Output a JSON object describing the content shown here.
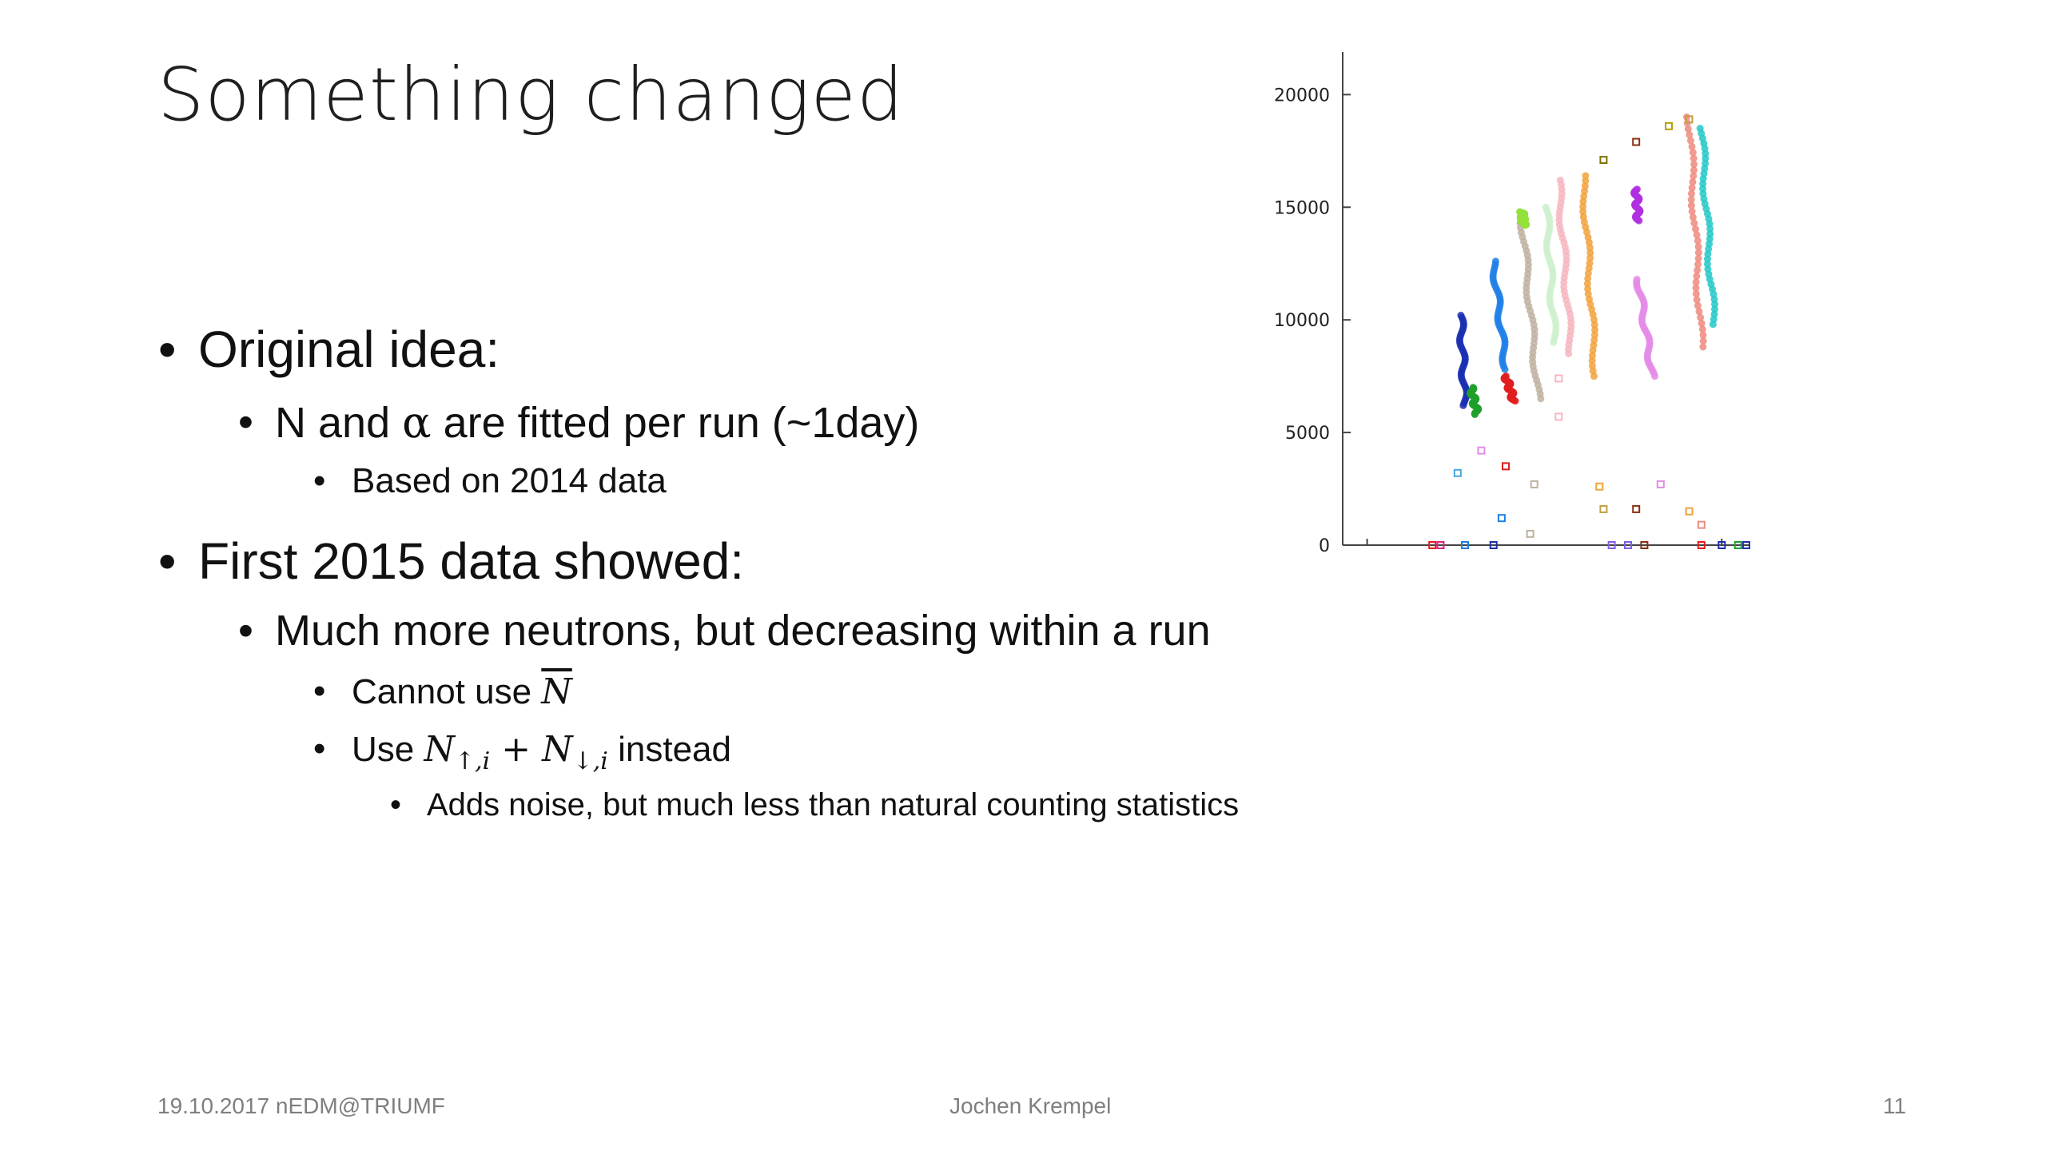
{
  "slide": {
    "title": "Something changed",
    "bullets": [
      {
        "text": "Original idea:"
      },
      {
        "text_before": "N and ",
        "alpha": "α",
        "text_after": " are fitted per run (~1day)"
      },
      {
        "text": "Based on 2014 data"
      },
      {
        "text": "First 2015 data showed:"
      },
      {
        "text": "Much more neutrons, but decreasing within a run"
      },
      {
        "text": "Cannot use ",
        "math": "N"
      },
      {
        "text_before": "Use ",
        "math_a": "N",
        "sub_a": "↑,i",
        "plus": " + ",
        "math_b": "N",
        "sub_b": "↓,i",
        "text_after": " instead"
      },
      {
        "text": "Adds noise, but much less than natural counting statistics"
      }
    ],
    "bullet_symbol": "•"
  },
  "footer": {
    "left": "19.10.2017 nEDM@TRIUMF",
    "center": "Jochen Krempel",
    "right": "11"
  },
  "chart_data": {
    "type": "scatter",
    "title": "",
    "xlabel": "",
    "ylabel": "",
    "ylim": [
      0,
      22000
    ],
    "yticks": [
      0,
      5000,
      10000,
      15000,
      20000
    ],
    "x_ticks_shown": false,
    "grid": false,
    "legend": "none",
    "series": [
      {
        "color": "#1a2fb0",
        "runs": [
          {
            "x": [
              0.29,
              0.3
            ],
            "y": [
              10200,
              6200
            ]
          }
        ]
      },
      {
        "color": "#1fa02b",
        "runs": [
          {
            "x": [
              0.315,
              0.33
            ],
            "y": [
              7000,
              5800
            ]
          }
        ]
      },
      {
        "color": "#1e7fe6",
        "runs": [
          {
            "x": [
              0.37,
              0.4
            ],
            "y": [
              12600,
              7800
            ]
          }
        ]
      },
      {
        "color": "#e01e1e",
        "runs": [
          {
            "x": [
              0.4,
              0.42
            ],
            "y": [
              7500,
              6400
            ]
          }
        ]
      },
      {
        "color": "#bfb2a2",
        "runs": [
          {
            "x": [
              0.44,
              0.48
            ],
            "y": [
              14500,
              6500
            ]
          }
        ]
      },
      {
        "color": "#93e03a",
        "runs": [
          {
            "x": [
              0.44,
              0.445
            ],
            "y": [
              14800,
              14200
            ]
          }
        ]
      },
      {
        "color": "#ccf0cc",
        "runs": [
          {
            "x": [
              0.5,
              0.52
            ],
            "y": [
              15000,
              9000
            ]
          }
        ]
      },
      {
        "color": "#f6b6c0",
        "runs": [
          {
            "x": [
              0.53,
              0.56
            ],
            "y": [
              16200,
              8500
            ]
          }
        ]
      },
      {
        "color": "#f2a23d",
        "runs": [
          {
            "x": [
              0.59,
              0.62
            ],
            "y": [
              16400,
              7500
            ]
          }
        ]
      },
      {
        "color": "#b030e0",
        "runs": [
          {
            "x": [
              0.72,
              0.725
            ],
            "y": [
              15800,
              14400
            ]
          }
        ]
      },
      {
        "color": "#e48be8",
        "runs": [
          {
            "x": [
              0.725,
              0.76
            ],
            "y": [
              11800,
              7500
            ]
          }
        ]
      },
      {
        "color": "#ef8a7e",
        "runs": [
          {
            "x": [
              0.85,
              0.88
            ],
            "y": [
              19000,
              8800
            ]
          }
        ]
      },
      {
        "color": "#24c8c8",
        "runs": [
          {
            "x": [
              0.88,
              0.91
            ],
            "y": [
              18500,
              9800
            ]
          }
        ]
      }
    ],
    "markers": [
      {
        "x": 0.64,
        "y": 17100,
        "color": "#807000"
      },
      {
        "x": 0.72,
        "y": 17900,
        "color": "#8a3010"
      },
      {
        "x": 0.8,
        "y": 18600,
        "color": "#b0a000"
      },
      {
        "x": 0.85,
        "y": 18900,
        "color": "#c0a040"
      },
      {
        "x": 0.282,
        "y": 3200,
        "color": "#49a6e0"
      },
      {
        "x": 0.4,
        "y": 3500,
        "color": "#e01e1e"
      },
      {
        "x": 0.39,
        "y": 1200,
        "color": "#1e7fe6"
      },
      {
        "x": 0.46,
        "y": 500,
        "color": "#bfb2a2"
      },
      {
        "x": 0.47,
        "y": 2700,
        "color": "#bfb2a2"
      },
      {
        "x": 0.63,
        "y": 2600,
        "color": "#f2a23d"
      },
      {
        "x": 0.64,
        "y": 1600,
        "color": "#c0a040"
      },
      {
        "x": 0.72,
        "y": 1600,
        "color": "#8a3010"
      },
      {
        "x": 0.78,
        "y": 2700,
        "color": "#e48be8"
      },
      {
        "x": 0.85,
        "y": 1500,
        "color": "#f2a23d"
      },
      {
        "x": 0.88,
        "y": 900,
        "color": "#ef8a7e"
      },
      {
        "x": 0.34,
        "y": 4200,
        "color": "#e48be8"
      },
      {
        "x": 0.53,
        "y": 5700,
        "color": "#f6b6c0"
      },
      {
        "x": 0.53,
        "y": 7400,
        "color": "#f6b6c0"
      },
      {
        "x": 0.37,
        "y": 0,
        "color": "#1a2fb0"
      },
      {
        "x": 0.24,
        "y": 0,
        "color": "#e01e8a"
      },
      {
        "x": 0.22,
        "y": 0,
        "color": "#e01e1e"
      },
      {
        "x": 0.3,
        "y": 0,
        "color": "#1e7fe6"
      },
      {
        "x": 0.66,
        "y": 0,
        "color": "#8060e0"
      },
      {
        "x": 0.7,
        "y": 0,
        "color": "#8060e0"
      },
      {
        "x": 0.74,
        "y": 0,
        "color": "#8a3010"
      },
      {
        "x": 0.88,
        "y": 0,
        "color": "#e01e1e"
      },
      {
        "x": 0.93,
        "y": 0,
        "color": "#1a2fb0"
      },
      {
        "x": 0.97,
        "y": 0,
        "color": "#1fa02b"
      },
      {
        "x": 0.99,
        "y": 0,
        "color": "#1a2fb0"
      }
    ]
  }
}
